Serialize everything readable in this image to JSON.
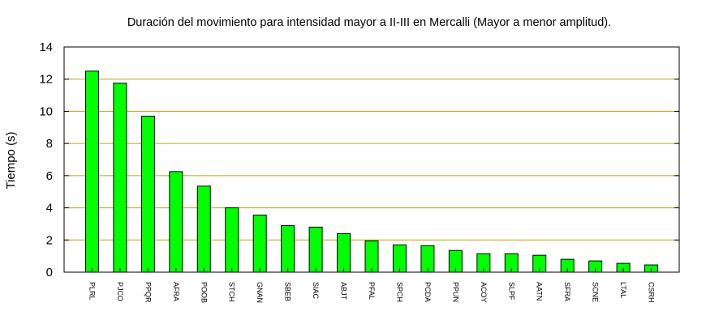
{
  "chart_data": {
    "type": "bar",
    "title": "Duración del movimiento para intensidad mayor a II-III en Mercalli (Mayor a menor amplitud).",
    "xlabel": "",
    "ylabel": "Tiempo (s)",
    "ylim": [
      0,
      14
    ],
    "yticks": [
      0,
      2,
      4,
      6,
      8,
      10,
      12,
      14
    ],
    "grid": "horizontal",
    "bar_color": "#00ff00",
    "grid_color": "#c8a000",
    "categories": [
      "PLRL",
      "PJCO",
      "PPQR",
      "AFRA",
      "POOB",
      "STCH",
      "GNAN",
      "SBEB",
      "SIAC",
      "ABJT",
      "PFAL",
      "SPCH",
      "PCDA",
      "PPUN",
      "ACOY",
      "SLPF",
      "AATN",
      "SFRA",
      "SCNE",
      "LTAL",
      "CSRH"
    ],
    "values": [
      12.5,
      11.75,
      9.7,
      6.25,
      5.35,
      4.0,
      3.55,
      2.9,
      2.8,
      2.4,
      1.95,
      1.7,
      1.65,
      1.35,
      1.15,
      1.15,
      1.05,
      0.8,
      0.7,
      0.55,
      0.45
    ]
  }
}
